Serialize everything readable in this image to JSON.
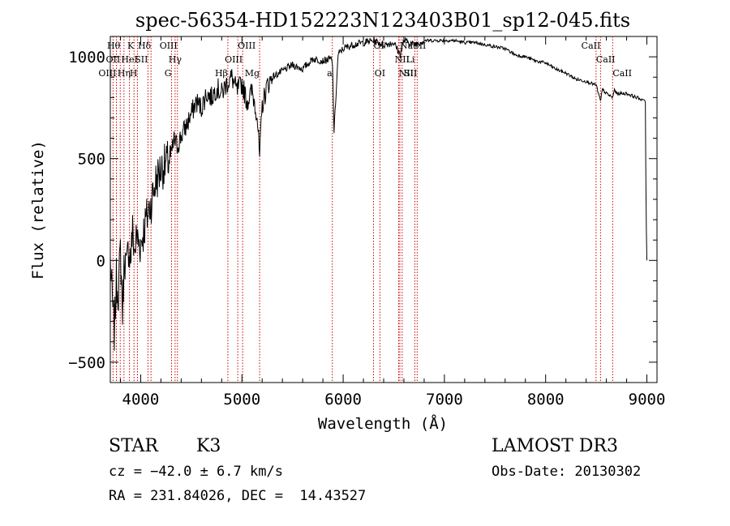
{
  "chart_data": {
    "type": "line",
    "title": "spec-56354-HD152223N123403B01_sp12-045.fits",
    "xlabel": "Wavelength (Å)",
    "ylabel": "Flux (relative)",
    "xlim": [
      3700,
      9100
    ],
    "ylim": [
      -600,
      1100
    ],
    "x_ticks": [
      4000,
      5000,
      6000,
      7000,
      8000,
      9000
    ],
    "y_ticks": [
      -500,
      0,
      500,
      1000
    ],
    "x_tick_labels": [
      "4000",
      "5000",
      "6000",
      "7000",
      "8000",
      "9000"
    ],
    "y_tick_labels": [
      "−500",
      "0",
      "500",
      "1000"
    ],
    "grid": false,
    "series": [
      {
        "x": [
          3700,
          3720,
          3740,
          3760,
          3780,
          3800,
          3820,
          3840,
          3860,
          3880,
          3900,
          3920,
          3940,
          3960,
          3980,
          4000,
          4050,
          4100,
          4150,
          4200,
          4250,
          4300,
          4330,
          4360,
          4400,
          4450,
          4500,
          4550,
          4600,
          4650,
          4700,
          4750,
          4800,
          4850,
          4900,
          4950,
          5000,
          5050,
          5100,
          5150,
          5175,
          5200,
          5250,
          5300,
          5400,
          5500,
          5600,
          5700,
          5800,
          5880,
          5895,
          5910,
          5950,
          6000,
          6100,
          6200,
          6300,
          6400,
          6500,
          6563,
          6600,
          6700,
          6800,
          6900,
          7000,
          7100,
          7200,
          7300,
          7400,
          7500,
          7600,
          7700,
          7800,
          7900,
          8000,
          8100,
          8200,
          8300,
          8400,
          8500,
          8542,
          8560,
          8600,
          8662,
          8680,
          8700,
          8800,
          8900,
          8950,
          8970,
          8985,
          8990,
          8995,
          9000
        ],
        "y": [
          0,
          -200,
          -350,
          -100,
          -150,
          50,
          -250,
          30,
          -50,
          70,
          10,
          140,
          40,
          120,
          90,
          80,
          190,
          280,
          390,
          450,
          470,
          510,
          590,
          560,
          610,
          660,
          720,
          780,
          750,
          820,
          800,
          850,
          820,
          870,
          900,
          830,
          870,
          780,
          830,
          720,
          500,
          760,
          860,
          900,
          930,
          960,
          940,
          990,
          980,
          990,
          960,
          630,
          1010,
          1040,
          1060,
          1070,
          1080,
          1060,
          1070,
          1010,
          1080,
          1060,
          1080,
          1080,
          1080,
          1080,
          1070,
          1070,
          1060,
          1050,
          1040,
          1010,
          1000,
          980,
          970,
          940,
          920,
          890,
          880,
          860,
          780,
          840,
          820,
          800,
          840,
          820,
          820,
          800,
          790,
          790,
          780,
          400,
          150,
          0
        ]
      }
    ],
    "spectral_lines": [
      {
        "label": "Hθ",
        "wl": 3798,
        "row": 0,
        "anchor": "end"
      },
      {
        "label": "K",
        "wl": 3934,
        "row": 0,
        "anchor": "end"
      },
      {
        "label": "Hδ",
        "wl": 4102,
        "row": 0,
        "anchor": "end"
      },
      {
        "label": "OIII",
        "wl": 4363,
        "row": 0,
        "anchor": "end"
      },
      {
        "label": "OIII",
        "wl": 4959,
        "row": 0,
        "anchor": "start"
      },
      {
        "label": "OI",
        "wl": 6300,
        "row": 0,
        "anchor": "start"
      },
      {
        "label": "NaSII",
        "wl": 6560,
        "row": 0,
        "anchor": "start"
      },
      {
        "label": "CaII",
        "wl": 8542,
        "row": 0,
        "anchor": "end"
      },
      {
        "label": "OII",
        "wl": 3727,
        "row": 1,
        "anchor": "middle"
      },
      {
        "label": "HeI",
        "wl": 3889,
        "row": 1,
        "anchor": "middle"
      },
      {
        "label": "SII",
        "wl": 4072,
        "row": 1,
        "anchor": "end"
      },
      {
        "label": "Hγ",
        "wl": 4340,
        "row": 1,
        "anchor": "middle"
      },
      {
        "label": "OIII",
        "wl": 5007,
        "row": 1,
        "anchor": "end"
      },
      {
        "label": "NII",
        "wl": 6583,
        "row": 1,
        "anchor": "middle"
      },
      {
        "label": "Li",
        "wl": 6708,
        "row": 1,
        "anchor": "end"
      },
      {
        "label": "CaII",
        "wl": 8498,
        "row": 1,
        "anchor": "start"
      },
      {
        "label": "OIII",
        "wl": 3760,
        "row": 2,
        "anchor": "end"
      },
      {
        "label": "Hη",
        "wl": 3835,
        "row": 2,
        "anchor": "middle"
      },
      {
        "label": "H",
        "wl": 3968,
        "row": 2,
        "anchor": "end"
      },
      {
        "label": "G",
        "wl": 4305,
        "row": 2,
        "anchor": "end"
      },
      {
        "label": "Hβ",
        "wl": 4861,
        "row": 2,
        "anchor": "end"
      },
      {
        "label": "Mg",
        "wl": 5175,
        "row": 2,
        "anchor": "end"
      },
      {
        "label": "a",
        "wl": 5893,
        "row": 2,
        "anchor": "end"
      },
      {
        "label": "OI",
        "wl": 6363,
        "row": 2,
        "anchor": "middle"
      },
      {
        "label": "NII",
        "wl": 6548,
        "row": 2,
        "anchor": "start"
      },
      {
        "label": "SII",
        "wl": 6731,
        "row": 2,
        "anchor": "end"
      },
      {
        "label": "CaII",
        "wl": 8662,
        "row": 2,
        "anchor": "start"
      }
    ]
  },
  "info": {
    "object_class": "STAR",
    "subclass": "K3",
    "redshift": "cz = −42.0 ± 6.7 km/s",
    "coords": "RA = 231.84026, DEC =  14.43527",
    "survey": "LAMOST DR3",
    "obs_date": "Obs-Date: 20130302"
  }
}
